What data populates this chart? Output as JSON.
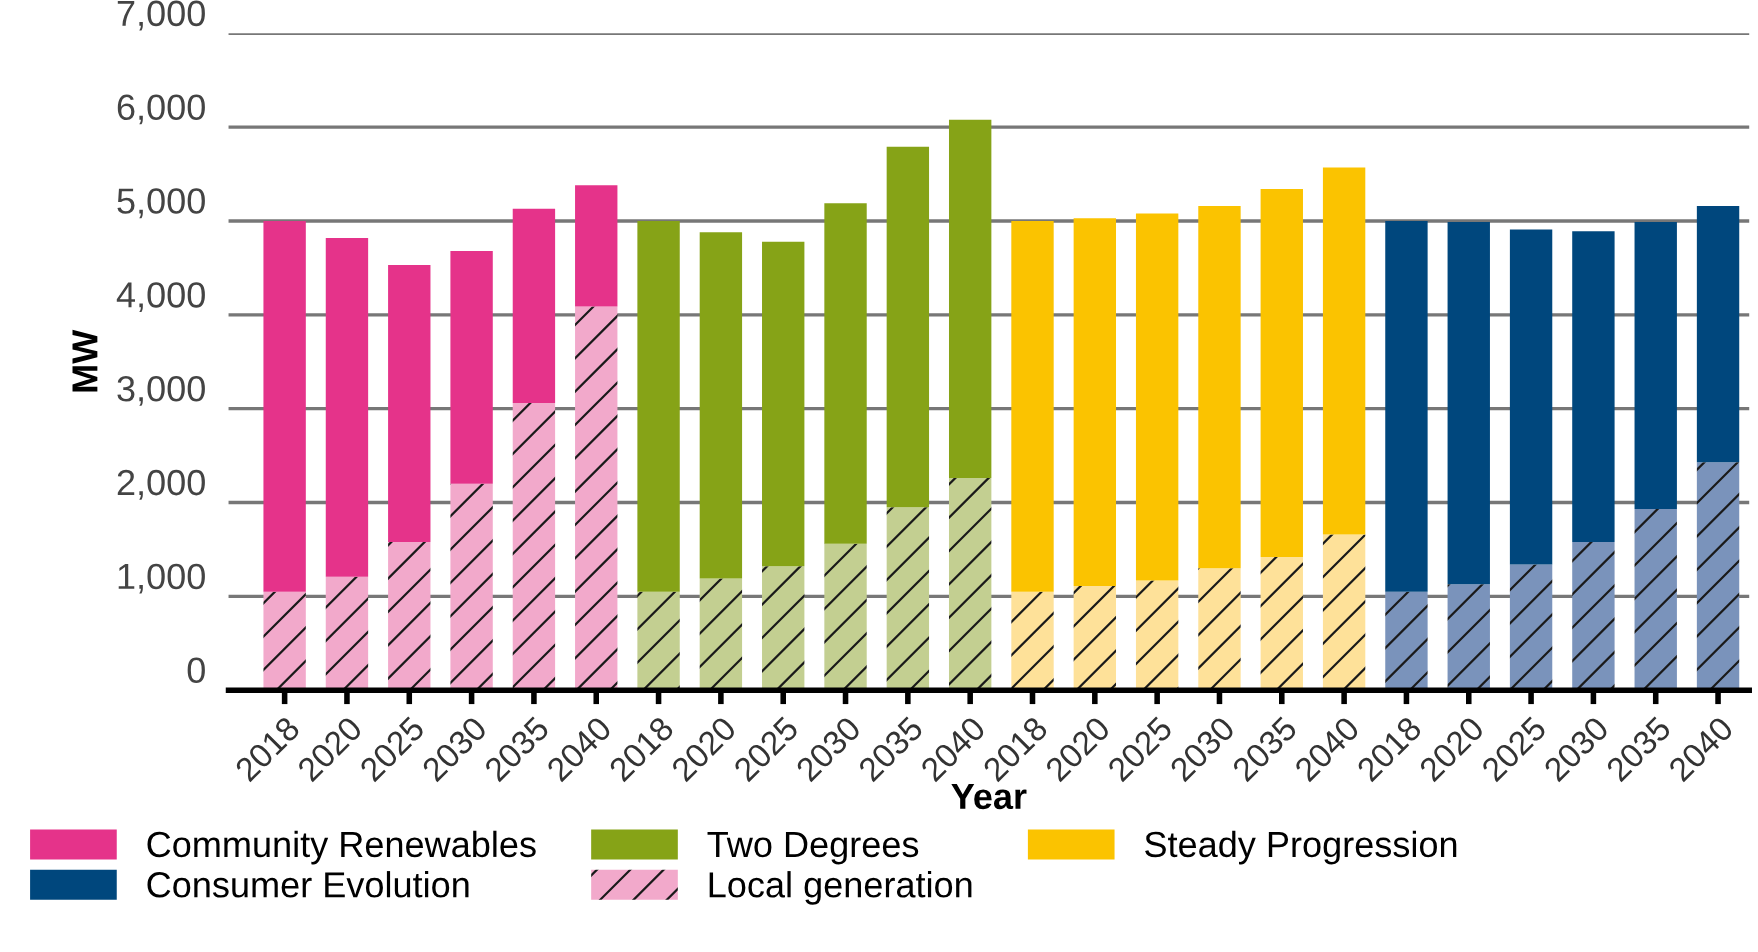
{
  "chart_data": {
    "type": "bar",
    "stacked": true,
    "xlabel": "Year",
    "ylabel": "MW",
    "categories": [
      "2018",
      "2020",
      "2025",
      "2030",
      "2035",
      "2040",
      "2018",
      "2020",
      "2025",
      "2030",
      "2035",
      "2040",
      "2018",
      "2020",
      "2025",
      "2030",
      "2035",
      "2040",
      "2018",
      "2020",
      "2025",
      "2030",
      "2035",
      "2040"
    ],
    "series": [
      {
        "name": "Local generation",
        "colors": [
          "#f2a9cb",
          "#f2a9cb",
          "#f2a9cb",
          "#f2a9cb",
          "#f2a9cb",
          "#f2a9cb",
          "#c3cf91",
          "#c3cf91",
          "#c3cf91",
          "#c3cf91",
          "#c3cf91",
          "#c3cf91",
          "#fee199",
          "#fee199",
          "#fee199",
          "#fee199",
          "#fee199",
          "#fee199",
          "#7a93bb",
          "#7a93bb",
          "#7a93bb",
          "#7a93bb",
          "#7a93bb",
          "#7a93bb"
        ],
        "values": [
          1050,
          1210,
          1580,
          2200,
          3060,
          4090,
          1050,
          1190,
          1320,
          1560,
          1950,
          2260,
          1050,
          1110,
          1170,
          1300,
          1420,
          1660,
          1050,
          1130,
          1340,
          1580,
          1930,
          2430
        ]
      },
      {
        "name": "Community Renewables",
        "color": "#e5338a",
        "values": [
          3950,
          3610,
          2950,
          2480,
          2070,
          1290,
          null,
          null,
          null,
          null,
          null,
          null,
          null,
          null,
          null,
          null,
          null,
          null,
          null,
          null,
          null,
          null,
          null,
          null
        ]
      },
      {
        "name": "Two Degrees",
        "color": "#86a317",
        "values": [
          null,
          null,
          null,
          null,
          null,
          null,
          3950,
          3690,
          3460,
          3630,
          3840,
          3820,
          null,
          null,
          null,
          null,
          null,
          null,
          null,
          null,
          null,
          null,
          null,
          null
        ]
      },
      {
        "name": "Steady Progression",
        "color": "#fbc300",
        "values": [
          null,
          null,
          null,
          null,
          null,
          null,
          null,
          null,
          null,
          null,
          null,
          null,
          3950,
          3920,
          3910,
          3860,
          3920,
          3910,
          null,
          null,
          null,
          null,
          null,
          null
        ]
      },
      {
        "name": "Consumer Evolution",
        "color": "#00477d",
        "values": [
          null,
          null,
          null,
          null,
          null,
          null,
          null,
          null,
          null,
          null,
          null,
          null,
          null,
          null,
          null,
          null,
          null,
          null,
          3950,
          3860,
          3570,
          3310,
          3060,
          2730
        ]
      }
    ],
    "ylim": [
      0,
      7000
    ],
    "yticks": [
      {
        "value": 0,
        "label": "0"
      },
      {
        "value": 1000,
        "label": "1,000"
      },
      {
        "value": 2000,
        "label": "2,000"
      },
      {
        "value": 3000,
        "label": "3,000"
      },
      {
        "value": 4000,
        "label": "4,000"
      },
      {
        "value": 5000,
        "label": "5,000"
      },
      {
        "value": 6000,
        "label": "6,000"
      },
      {
        "value": 7000,
        "label": "7,000"
      }
    ],
    "grid": "y",
    "legend": "bottom"
  }
}
